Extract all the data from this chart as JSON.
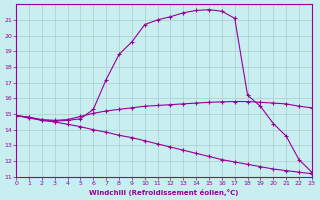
{
  "xlabel": "Windchill (Refroidissement éolien,°C)",
  "bg_color": "#c8eef0",
  "line_color": "#990099",
  "grid_color": "#aacccc",
  "xlim": [
    0,
    23
  ],
  "ylim": [
    11,
    22
  ],
  "xticks": [
    0,
    1,
    2,
    3,
    4,
    5,
    6,
    7,
    8,
    9,
    10,
    11,
    12,
    13,
    14,
    15,
    16,
    17,
    18,
    19,
    20,
    21,
    22,
    23
  ],
  "yticks": [
    11,
    12,
    13,
    14,
    15,
    16,
    17,
    18,
    19,
    20,
    21
  ],
  "line_upper_x": [
    0,
    1,
    2,
    3,
    4,
    5,
    6,
    7,
    8,
    9,
    10,
    11,
    12,
    13,
    14,
    15,
    16,
    17,
    18,
    19,
    20,
    21,
    22,
    23
  ],
  "line_upper_y": [
    14.9,
    14.8,
    14.6,
    14.55,
    14.6,
    14.7,
    15.3,
    17.2,
    18.8,
    19.6,
    20.7,
    21.0,
    21.2,
    21.45,
    21.6,
    21.65,
    21.55,
    21.1,
    16.2,
    15.5,
    14.4,
    13.6,
    12.1,
    11.3
  ],
  "line_mid_x": [
    0,
    1,
    2,
    3,
    4,
    5,
    6,
    7,
    8,
    9,
    10,
    11,
    12,
    13,
    14,
    15,
    16,
    17,
    18,
    19,
    20,
    21,
    22,
    23
  ],
  "line_mid_y": [
    14.9,
    14.8,
    14.65,
    14.6,
    14.65,
    14.85,
    15.05,
    15.2,
    15.3,
    15.4,
    15.5,
    15.55,
    15.6,
    15.65,
    15.7,
    15.75,
    15.78,
    15.8,
    15.8,
    15.75,
    15.7,
    15.65,
    15.5,
    15.4
  ],
  "line_lower_x": [
    0,
    1,
    2,
    3,
    4,
    5,
    6,
    7,
    8,
    9,
    10,
    11,
    12,
    13,
    14,
    15,
    16,
    17,
    18,
    19,
    20,
    21,
    22,
    23
  ],
  "line_lower_y": [
    14.9,
    14.75,
    14.6,
    14.5,
    14.35,
    14.2,
    14.0,
    13.85,
    13.65,
    13.5,
    13.3,
    13.1,
    12.9,
    12.7,
    12.5,
    12.3,
    12.1,
    11.95,
    11.8,
    11.65,
    11.5,
    11.4,
    11.3,
    11.2
  ]
}
